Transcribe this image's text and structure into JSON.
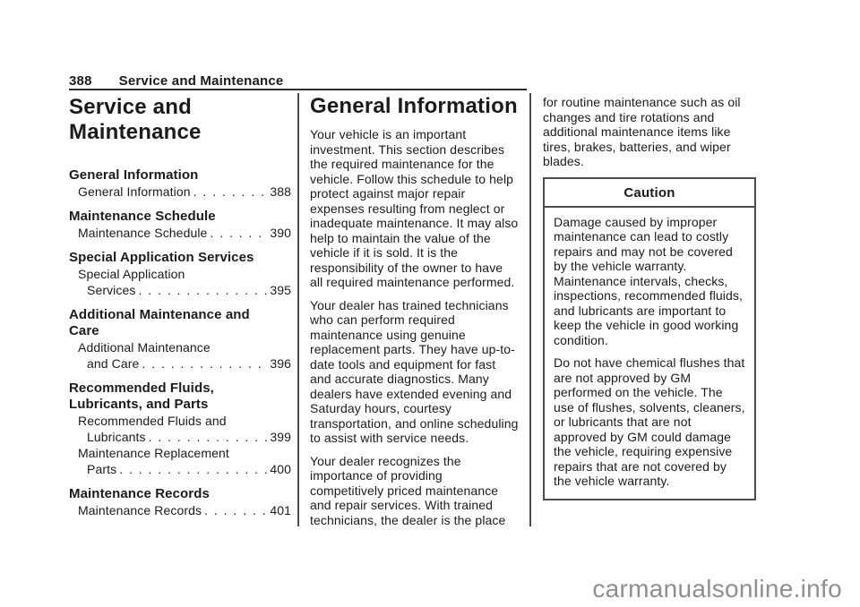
{
  "page": {
    "number": "388",
    "chapter": "Service and Maintenance"
  },
  "left_column": {
    "title": "Service and Maintenance",
    "toc": [
      {
        "heading": "General Information",
        "items": [
          {
            "pre_lines": [],
            "text": "General Information",
            "page": "388"
          }
        ]
      },
      {
        "heading": "Maintenance Schedule",
        "items": [
          {
            "pre_lines": [],
            "text": "Maintenance Schedule",
            "page": "390"
          }
        ]
      },
      {
        "heading": "Special Application Services",
        "items": [
          {
            "pre_lines": [
              "Special Application"
            ],
            "text": "Services",
            "page": "395"
          }
        ]
      },
      {
        "heading": "Additional Maintenance and Care",
        "items": [
          {
            "pre_lines": [
              "Additional Maintenance"
            ],
            "text": "and Care",
            "page": "396"
          }
        ]
      },
      {
        "heading": "Recommended Fluids, Lubricants, and Parts",
        "items": [
          {
            "pre_lines": [
              "Recommended Fluids and"
            ],
            "text": "Lubricants",
            "page": "399"
          },
          {
            "pre_lines": [
              "Maintenance Replacement"
            ],
            "text": "Parts",
            "page": "400"
          }
        ]
      },
      {
        "heading": "Maintenance Records",
        "items": [
          {
            "pre_lines": [],
            "text": "Maintenance Records",
            "page": "401"
          }
        ]
      }
    ]
  },
  "middle_column": {
    "title": "General Information",
    "paragraphs": [
      "Your vehicle is an important investment. This section describes the required maintenance for the vehicle. Follow this schedule to help protect against major repair expenses resulting from neglect or inadequate maintenance. It may also help to maintain the value of the vehicle if it is sold. It is the responsibility of the owner to have all required maintenance performed.",
      "Your dealer has trained technicians who can perform required maintenance using genuine replacement parts. They have up-to-date tools and equipment for fast and accurate diagnostics. Many dealers have extended evening and Saturday hours, courtesy transportation, and online scheduling to assist with service needs.",
      "Your dealer recognizes the importance of providing competitively priced maintenance and repair services. With trained technicians, the dealer is the place"
    ]
  },
  "right_column": {
    "paragraphs": [
      "for routine maintenance such as oil changes and tire rotations and additional maintenance items like tires, brakes, batteries, and wiper blades."
    ],
    "caution": {
      "title": "Caution",
      "paragraphs": [
        "Damage caused by improper maintenance can lead to costly repairs and may not be covered by the vehicle warranty. Maintenance intervals, checks, inspections, recommended fluids, and lubricants are important to keep the vehicle in good working condition.",
        "Do not have chemical flushes that are not approved by GM performed on the vehicle. The use of flushes, solvents, cleaners, or lubricants that are not approved by GM could damage the vehicle, requiring expensive repairs that are not covered by the vehicle warranty."
      ]
    }
  },
  "watermark": "carmanualsonline.info"
}
